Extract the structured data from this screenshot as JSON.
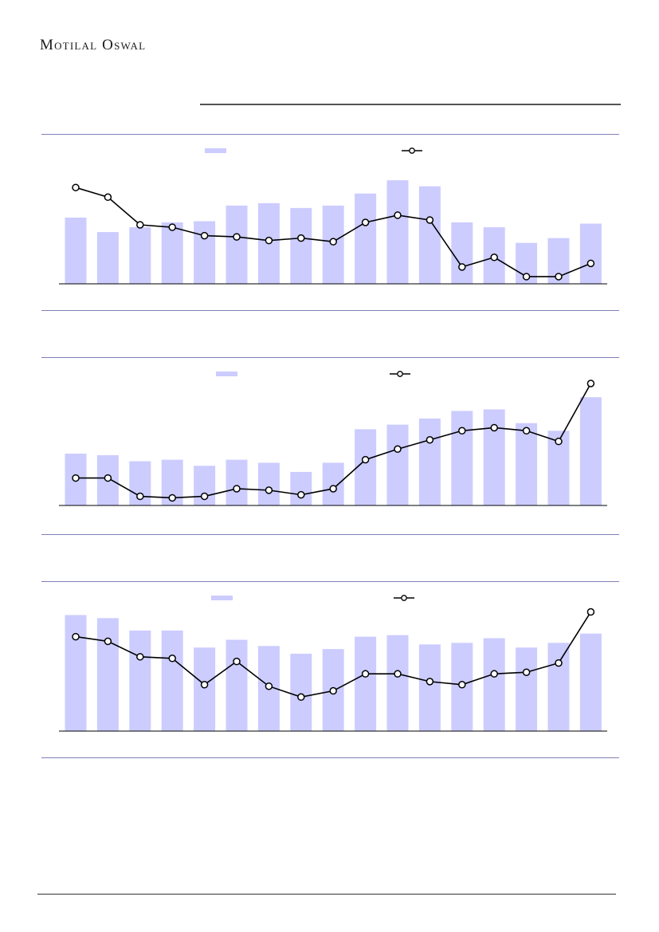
{
  "brand": {
    "name": "Motilal Oswal"
  },
  "colors": {
    "bar": "#ccccff",
    "line": "#000000",
    "marker_fill": "#ffffff",
    "rule": "#8080b8"
  },
  "chart_data": [
    {
      "type": "bar",
      "series": [
        {
          "values": [
            55,
            43,
            47,
            51,
            52,
            65,
            67,
            63,
            65,
            75,
            86,
            81,
            51,
            47,
            34,
            38,
            50
          ]
        },
        {
          "type": "line",
          "values": [
            80,
            72,
            49,
            47,
            40,
            39,
            36,
            38,
            35,
            51,
            57,
            53,
            14,
            22,
            6,
            6,
            17
          ]
        }
      ],
      "ylim": [
        0,
        100
      ]
    },
    {
      "type": "bar",
      "series": [
        {
          "values": [
            34,
            33,
            29,
            30,
            26,
            30,
            28,
            22,
            28,
            50,
            53,
            57,
            62,
            63,
            54,
            49,
            71
          ]
        },
        {
          "type": "line",
          "values": [
            18,
            18,
            6,
            5,
            6,
            11,
            10,
            7,
            11,
            30,
            37,
            43,
            49,
            51,
            49,
            42,
            80
          ]
        }
      ],
      "ylim": [
        0,
        80
      ]
    },
    {
      "type": "bar",
      "series": [
        {
          "values": [
            75,
            73,
            65,
            65,
            54,
            59,
            55,
            50,
            53,
            61,
            62,
            56,
            57,
            60,
            54,
            57,
            63
          ]
        },
        {
          "type": "line",
          "values": [
            61,
            58,
            48,
            47,
            30,
            45,
            29,
            22,
            26,
            37,
            37,
            32,
            30,
            37,
            38,
            44,
            77
          ]
        }
      ],
      "ylim": [
        0,
        85
      ]
    }
  ]
}
